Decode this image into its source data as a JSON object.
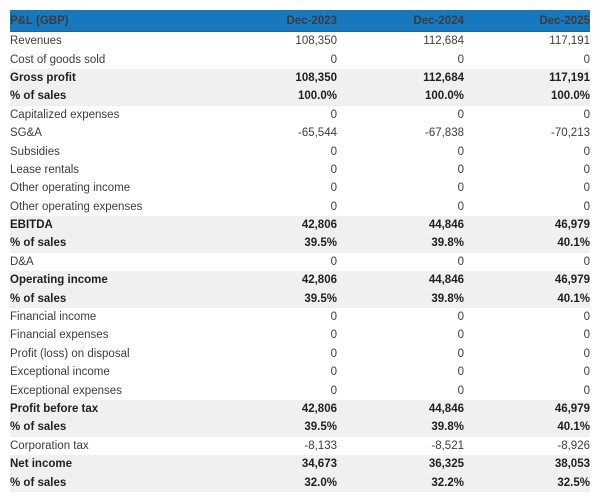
{
  "chart_data": {
    "type": "table",
    "title": "P&L (GBP) projection table",
    "header": {
      "label": "P&L (GBP)",
      "columns": [
        "Dec-2023",
        "Dec-2024",
        "Dec-2025"
      ]
    },
    "rows": [
      {
        "label": "Revenues",
        "values": [
          "108,350",
          "112,684",
          "117,191"
        ],
        "emphasis": false
      },
      {
        "label": "Cost of goods sold",
        "values": [
          "0",
          "0",
          "0"
        ],
        "emphasis": false
      },
      {
        "label": "Gross profit",
        "values": [
          "108,350",
          "112,684",
          "117,191"
        ],
        "emphasis": true
      },
      {
        "label": "% of sales",
        "values": [
          "100.0%",
          "100.0%",
          "100.0%"
        ],
        "emphasis": true
      },
      {
        "label": "Capitalized expenses",
        "values": [
          "0",
          "0",
          "0"
        ],
        "emphasis": false
      },
      {
        "label": "SG&A",
        "values": [
          "-65,544",
          "-67,838",
          "-70,213"
        ],
        "emphasis": false
      },
      {
        "label": "Subsidies",
        "values": [
          "0",
          "0",
          "0"
        ],
        "emphasis": false
      },
      {
        "label": "Lease rentals",
        "values": [
          "0",
          "0",
          "0"
        ],
        "emphasis": false
      },
      {
        "label": "Other operating income",
        "values": [
          "0",
          "0",
          "0"
        ],
        "emphasis": false
      },
      {
        "label": "Other operating expenses",
        "values": [
          "0",
          "0",
          "0"
        ],
        "emphasis": false
      },
      {
        "label": "EBITDA",
        "values": [
          "42,806",
          "44,846",
          "46,979"
        ],
        "emphasis": true
      },
      {
        "label": "% of sales",
        "values": [
          "39.5%",
          "39.8%",
          "40.1%"
        ],
        "emphasis": true
      },
      {
        "label": "D&A",
        "values": [
          "0",
          "0",
          "0"
        ],
        "emphasis": false
      },
      {
        "label": "Operating income",
        "values": [
          "42,806",
          "44,846",
          "46,979"
        ],
        "emphasis": true
      },
      {
        "label": "% of sales",
        "values": [
          "39.5%",
          "39.8%",
          "40.1%"
        ],
        "emphasis": true
      },
      {
        "label": "Financial income",
        "values": [
          "0",
          "0",
          "0"
        ],
        "emphasis": false
      },
      {
        "label": "Financial expenses",
        "values": [
          "0",
          "0",
          "0"
        ],
        "emphasis": false
      },
      {
        "label": "Profit (loss) on disposal",
        "values": [
          "0",
          "0",
          "0"
        ],
        "emphasis": false
      },
      {
        "label": "Exceptional income",
        "values": [
          "0",
          "0",
          "0"
        ],
        "emphasis": false
      },
      {
        "label": "Exceptional expenses",
        "values": [
          "0",
          "0",
          "0"
        ],
        "emphasis": false
      },
      {
        "label": "Profit before tax",
        "values": [
          "42,806",
          "44,846",
          "46,979"
        ],
        "emphasis": true
      },
      {
        "label": "% of sales",
        "values": [
          "39.5%",
          "39.8%",
          "40.1%"
        ],
        "emphasis": true
      },
      {
        "label": "Corporation tax",
        "values": [
          "-8,133",
          "-8,521",
          "-8,926"
        ],
        "emphasis": false
      },
      {
        "label": "Net income",
        "values": [
          "34,673",
          "36,325",
          "38,053"
        ],
        "emphasis": true
      },
      {
        "label": "% of sales",
        "values": [
          "32.0%",
          "32.2%",
          "32.5%"
        ],
        "emphasis": true
      }
    ]
  },
  "colors": {
    "header_bg": "#1878be",
    "header_text": "#ffffff",
    "emphasis_row_bg": "#f0f0f0",
    "text": "#3c3c3c",
    "page_bg": "#ffffff"
  }
}
